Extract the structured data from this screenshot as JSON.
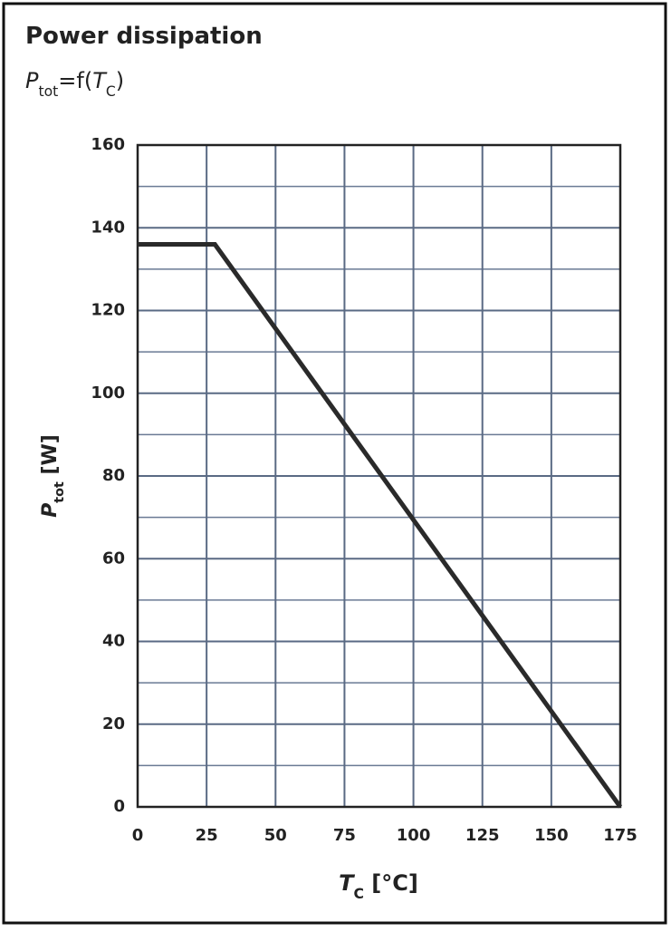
{
  "chart_data": {
    "type": "line",
    "title": "Power dissipation",
    "subtitle": [
      {
        "text": "P",
        "style": "italic"
      },
      {
        "text": "tot",
        "style": "sub"
      },
      {
        "text": "=f(",
        "style": "normal"
      },
      {
        "text": "T",
        "style": "italic"
      },
      {
        "text": "C",
        "style": "sub"
      },
      {
        "text": ")",
        "style": "normal"
      }
    ],
    "y_label": [
      {
        "text": "P",
        "style": "italic"
      },
      {
        "text": "tot",
        "style": "sub"
      },
      {
        "text": " [W]",
        "style": "normal"
      }
    ],
    "x_label": [
      {
        "text": "T",
        "style": "italic"
      },
      {
        "text": "C",
        "style": "sub"
      },
      {
        "text": " [°C]",
        "style": "normal"
      }
    ],
    "x": [
      0,
      28,
      175
    ],
    "series": [
      {
        "color": "#2a2a2a",
        "values": [
          136,
          136,
          0
        ]
      }
    ],
    "xlim": [
      0,
      175
    ],
    "xticks": [
      0,
      25,
      50,
      75,
      100,
      125,
      150,
      175
    ],
    "ylim": [
      0,
      160
    ],
    "yticks": [
      0,
      20,
      40,
      60,
      80,
      100,
      120,
      140,
      160
    ],
    "yminorticks": [
      10,
      30,
      50,
      70,
      90,
      110,
      130,
      150
    ],
    "grid": true
  }
}
